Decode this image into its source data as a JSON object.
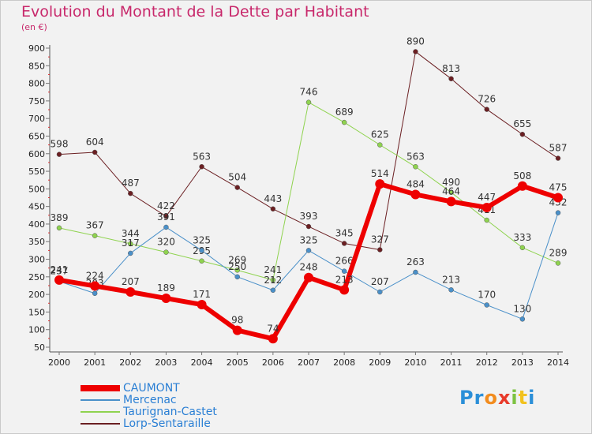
{
  "title": "Evolution du Montant de la Dette par Habitant",
  "subtitle": "(en €)",
  "logo": {
    "text": "Proxiti",
    "letters": [
      "P",
      "r",
      "o",
      "x",
      "i",
      "t",
      "i"
    ],
    "colors": [
      "#2b8fd8",
      "#2b8fd8",
      "#f28c1e",
      "#e83a2a",
      "#7cc242",
      "#f2c21e",
      "#2b8fd8"
    ]
  },
  "chart_data": {
    "type": "line",
    "x": [
      "2000",
      "2001",
      "2002",
      "2003",
      "2004",
      "2005",
      "2006",
      "2007",
      "2008",
      "2009",
      "2010",
      "2011",
      "2012",
      "2013",
      "2014"
    ],
    "ylim": [
      50,
      900
    ],
    "yticks": [
      50,
      100,
      150,
      200,
      250,
      300,
      350,
      400,
      450,
      500,
      550,
      600,
      650,
      700,
      750,
      800,
      850,
      900
    ],
    "grid": false,
    "legend_position": "bottom-left",
    "series": [
      {
        "name": "Lorp-Sentaraille",
        "color": "#6b1f22",
        "width": 1,
        "values": [
          598,
          604,
          487,
          422,
          563,
          504,
          443,
          393,
          345,
          327,
          890,
          813,
          726,
          655,
          587
        ]
      },
      {
        "name": "Taurignan-Castet",
        "color": "#8fd34f",
        "width": 1,
        "values": [
          389,
          367,
          344,
          320,
          295,
          269,
          241,
          746,
          689,
          625,
          563,
          490,
          411,
          333,
          289
        ]
      },
      {
        "name": "Mercenac",
        "color": "#4a90c9",
        "width": 1,
        "values": [
          237,
          203,
          317,
          391,
          325,
          250,
          212,
          325,
          266,
          207,
          263,
          213,
          170,
          130,
          432
        ]
      },
      {
        "name": "CAUMONT",
        "color": "#ee0000",
        "width": 6,
        "values": [
          241,
          224,
          207,
          189,
          171,
          98,
          74,
          248,
          213,
          514,
          484,
          464,
          447,
          508,
          475
        ]
      }
    ],
    "legend_order": [
      "CAUMONT",
      "Mercenac",
      "Taurignan-Castet",
      "Lorp-Sentaraille"
    ]
  }
}
